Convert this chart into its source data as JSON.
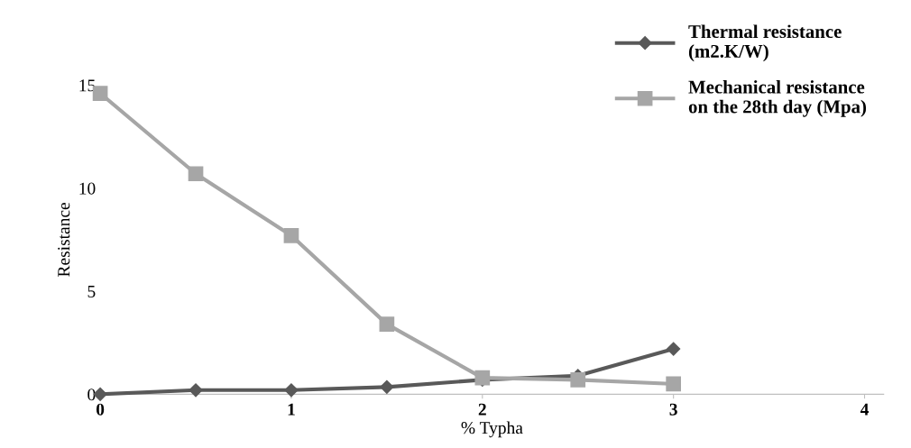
{
  "chart_data": {
    "type": "line",
    "xlabel": "% Typha",
    "ylabel": "Resistance",
    "x": [
      0,
      0.5,
      1,
      1.5,
      2,
      2.5,
      3
    ],
    "series": [
      {
        "name": "Thermal resistance\n(m2.K/W)",
        "color": "#595959",
        "marker": "diamond",
        "values": [
          0,
          0.2,
          0.2,
          0.35,
          0.7,
          0.9,
          2.2
        ]
      },
      {
        "name": "Mechanical resistance\non the 28th day (Mpa)",
        "color": "#a6a6a6",
        "marker": "square",
        "values": [
          14.6,
          10.7,
          7.7,
          3.4,
          0.8,
          0.7,
          0.5
        ]
      }
    ],
    "xlim": [
      0,
      4.1
    ],
    "ylim": [
      0,
      15
    ],
    "xticks": [
      0,
      1,
      2,
      3,
      4
    ],
    "yticks": [
      0,
      5,
      10,
      15
    ],
    "grid": false,
    "legend": "top right"
  }
}
